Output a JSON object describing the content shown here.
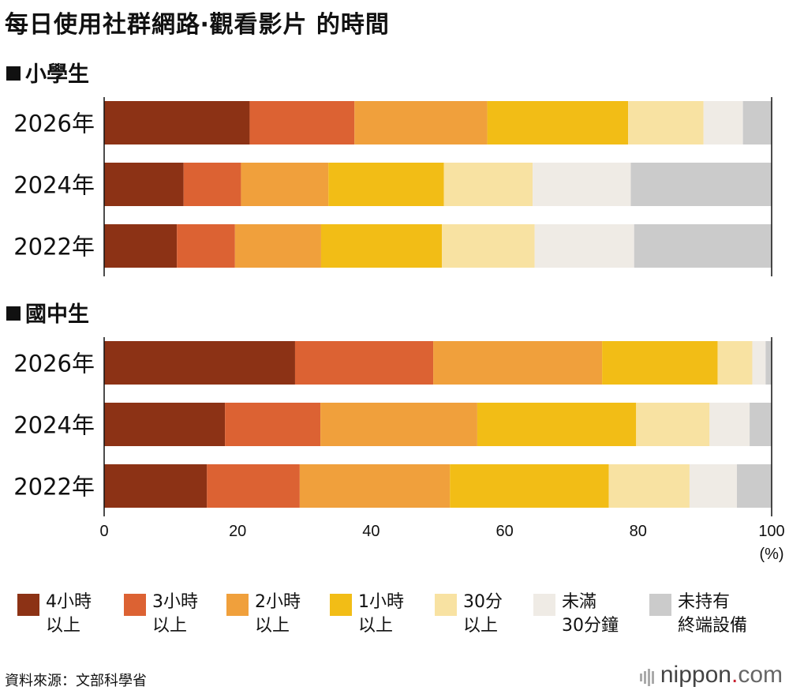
{
  "title": "每日使用社群網路‧觀看影片 的時間",
  "groups": [
    {
      "label": "■小學生",
      "title": "小學生"
    },
    {
      "label": "■國中生",
      "title": "國中生"
    }
  ],
  "unit_label": "(%)",
  "source": "資料來源：文部科學省",
  "logo": {
    "main": "nippon",
    "dot": ".",
    "tail": "com"
  },
  "chart_data": {
    "type": "bar",
    "orientation": "horizontal",
    "stacked": true,
    "xlim": [
      0,
      100
    ],
    "xticks": [
      0,
      20,
      40,
      60,
      80,
      100
    ],
    "xunit": "(%)",
    "categories_legend": [
      {
        "name": "4小時以上",
        "line1": "4小時",
        "line2": "以上",
        "color": "#8c3215"
      },
      {
        "name": "3小時以上",
        "line1": "3小時",
        "line2": "以上",
        "color": "#dc6233"
      },
      {
        "name": "2小時以上",
        "line1": "2小時",
        "line2": "以上",
        "color": "#f0a03c"
      },
      {
        "name": "1小時以上",
        "line1": "1小時",
        "line2": "以上",
        "color": "#f2bd16"
      },
      {
        "name": "30分以上",
        "line1": "30分",
        "line2": "以上",
        "color": "#f8e2a2"
      },
      {
        "name": "未滿30分鐘",
        "line1": "未滿",
        "line2": "30分鐘",
        "color": "#efebe5"
      },
      {
        "name": "未持有終端設備",
        "line1": "未持有",
        "line2": "終端設備",
        "color": "#cbcbcb"
      }
    ],
    "groups": [
      {
        "group": "小學生",
        "rows": [
          {
            "year": "2026年",
            "values": [
              21.8,
              15.7,
              19.9,
              21.1,
              11.3,
              5.9,
              4.3
            ]
          },
          {
            "year": "2024年",
            "values": [
              11.9,
              8.6,
              13.1,
              17.3,
              13.3,
              14.7,
              21.1
            ]
          },
          {
            "year": "2022年",
            "values": [
              10.9,
              8.7,
              12.9,
              18.1,
              13.9,
              14.9,
              20.6
            ]
          }
        ]
      },
      {
        "group": "國中生",
        "rows": [
          {
            "year": "2026年",
            "values": [
              28.6,
              20.7,
              25.3,
              17.3,
              5.2,
              2.0,
              0.9
            ]
          },
          {
            "year": "2024年",
            "values": [
              18.1,
              14.3,
              23.5,
              23.8,
              11.0,
              6.0,
              3.3
            ]
          },
          {
            "year": "2022年",
            "values": [
              15.4,
              13.9,
              22.5,
              23.8,
              12.1,
              7.1,
              5.2
            ]
          }
        ]
      }
    ]
  }
}
